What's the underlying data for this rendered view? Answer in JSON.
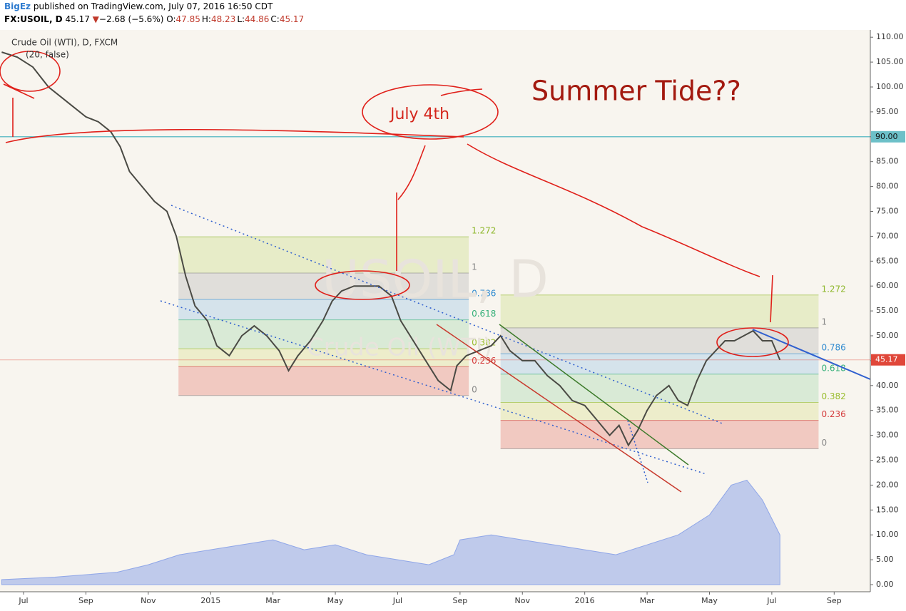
{
  "header": {
    "author": "BigEz",
    "published": "published on TradingView.com, July 07, 2016 16:50 CDT",
    "symbol": "FX:USOIL, D",
    "last": "45.17",
    "arrow": "▼",
    "change": "−2.68 (−5.6%)",
    "ohlc": [
      {
        "label": "O:",
        "value": "47.85"
      },
      {
        "label": "H:",
        "value": "48.23"
      },
      {
        "label": "L:",
        "value": "44.86"
      },
      {
        "label": "C:",
        "value": "45.17"
      }
    ]
  },
  "chart_data": {
    "type": "line",
    "title": "Crude Oil (WTI), D, FXCM",
    "indicator": "(20, false)",
    "watermark": "USOIL, D",
    "watermark_sub": "Crude Oil (WTI)",
    "annotations": [
      "Summer Tide??",
      "July 4th"
    ],
    "xlim": [
      -0.755,
      27.16
    ],
    "ylim": [
      -1.43,
      111.46
    ],
    "xticks": [
      {
        "value": 0,
        "label": "Jul"
      },
      {
        "value": 2,
        "label": "Sep"
      },
      {
        "value": 4,
        "label": "Nov"
      },
      {
        "value": 6,
        "label": "2015"
      },
      {
        "value": 8,
        "label": "Mar"
      },
      {
        "value": 10,
        "label": "May"
      },
      {
        "value": 12,
        "label": "Jul"
      },
      {
        "value": 14,
        "label": "Sep"
      },
      {
        "value": 16,
        "label": "Nov"
      },
      {
        "value": 18,
        "label": "2016"
      },
      {
        "value": 20,
        "label": "Mar"
      },
      {
        "value": 22,
        "label": "May"
      },
      {
        "value": 24,
        "label": "Jul"
      },
      {
        "value": 26,
        "label": "Sep"
      }
    ],
    "yticks": [
      {
        "value": 0,
        "label": "0.00"
      },
      {
        "value": 5,
        "label": "5.00"
      },
      {
        "value": 10,
        "label": "10.00"
      },
      {
        "value": 15,
        "label": "15.00"
      },
      {
        "value": 20,
        "label": "20.00"
      },
      {
        "value": 25,
        "label": "25.00"
      },
      {
        "value": 30,
        "label": "30.00"
      },
      {
        "value": 35,
        "label": "35.00"
      },
      {
        "value": 40,
        "label": "40.00"
      },
      {
        "value": 45,
        "label": "45.00"
      },
      {
        "value": 50,
        "label": "50.00"
      },
      {
        "value": 55,
        "label": "55.00"
      },
      {
        "value": 60,
        "label": "60.00"
      },
      {
        "value": 65,
        "label": "65.00"
      },
      {
        "value": 70,
        "label": "70.00"
      },
      {
        "value": 75,
        "label": "75.00"
      },
      {
        "value": 80,
        "label": "80.00"
      },
      {
        "value": 85,
        "label": "85.00"
      },
      {
        "value": 90,
        "label": "90.00"
      },
      {
        "value": 95,
        "label": "95.00"
      },
      {
        "value": 100,
        "label": "100.00"
      },
      {
        "value": 105,
        "label": "105.00"
      },
      {
        "value": 110,
        "label": "110.00"
      }
    ],
    "hline": {
      "value": 90,
      "label": "90.00",
      "color": "#6cc0c8"
    },
    "last_price": {
      "value": 45.17,
      "color": "#e0473a"
    },
    "series": [
      {
        "color": "#4a4a44",
        "style": "line",
        "x": [
          -0.7,
          -0.2,
          0.3,
          0.8,
          1.2,
          1.6,
          2,
          2.4,
          2.8,
          3.1,
          3.4,
          3.8,
          4.2,
          4.6,
          4.9,
          5.2,
          5.5,
          5.9,
          6.2,
          6.6,
          7,
          7.4,
          7.8,
          8.2,
          8.5,
          8.8,
          9.2,
          9.6,
          9.9,
          10.2,
          10.6,
          11,
          11.4,
          11.8,
          12.1,
          12.5,
          12.9,
          13.3,
          13.7,
          13.9,
          14.2,
          14.6,
          15,
          15.3,
          15.6,
          16,
          16.4,
          16.8,
          17.2,
          17.6,
          18,
          18.4,
          18.8,
          19.1,
          19.4,
          19.7,
          20,
          20.3,
          20.7,
          21,
          21.3,
          21.6,
          21.9,
          22.2,
          22.5,
          22.8,
          23.1,
          23.4,
          23.7,
          24,
          24.26
        ],
        "values": [
          107,
          106,
          104,
          100,
          98,
          96,
          94,
          93,
          91,
          88,
          83,
          80,
          77,
          75,
          70,
          62,
          56,
          53,
          48,
          46,
          50,
          52,
          50,
          47,
          43,
          46,
          49,
          53,
          57,
          59,
          60,
          60,
          60,
          58,
          53,
          49,
          45,
          41,
          39,
          44,
          46,
          47,
          48,
          50,
          47,
          45,
          45,
          42,
          40,
          37,
          36,
          33,
          30,
          32,
          28,
          31,
          35,
          38,
          40,
          37,
          36,
          41,
          45,
          47,
          49,
          49,
          50,
          51,
          49,
          49,
          45.17
        ]
      },
      {
        "color": "#8fa6e8",
        "style": "area",
        "x": [
          -0.7,
          1,
          3,
          4,
          5,
          6,
          7,
          8,
          9,
          10,
          11,
          12,
          13,
          13.8,
          14,
          15,
          16,
          17,
          18,
          19,
          20,
          21,
          22,
          22.7,
          23.2,
          23.7,
          24.1,
          24.26
        ],
        "values": [
          1,
          1.5,
          2.5,
          4,
          6,
          7,
          8,
          9,
          7,
          8,
          6,
          5,
          4,
          6,
          9,
          10,
          9,
          8,
          7,
          6,
          8,
          10,
          14,
          20,
          21,
          17,
          12,
          10
        ]
      }
    ],
    "fibs": [
      {
        "x": [
          4.97,
          14.28
        ],
        "levels": [
          {
            "ratio": 0,
            "price": 38
          },
          {
            "ratio": 0.236,
            "price": 43.8
          },
          {
            "ratio": 0.382,
            "price": 47.4
          },
          {
            "ratio": 0.618,
            "price": 53.2
          },
          {
            "ratio": 0.786,
            "price": 57.3
          },
          {
            "ratio": 1,
            "price": 62.6
          },
          {
            "ratio": 1.272,
            "price": 69.9
          }
        ]
      },
      {
        "x": [
          15.3,
          25.5
        ],
        "levels": [
          {
            "ratio": 0,
            "price": 27.3
          },
          {
            "ratio": 0.236,
            "price": 33
          },
          {
            "ratio": 0.382,
            "price": 36.6
          },
          {
            "ratio": 0.618,
            "price": 42.3
          },
          {
            "ratio": 0.786,
            "price": 46.4
          },
          {
            "ratio": 1,
            "price": 51.6
          },
          {
            "ratio": 1.272,
            "price": 58.2
          }
        ]
      }
    ]
  }
}
